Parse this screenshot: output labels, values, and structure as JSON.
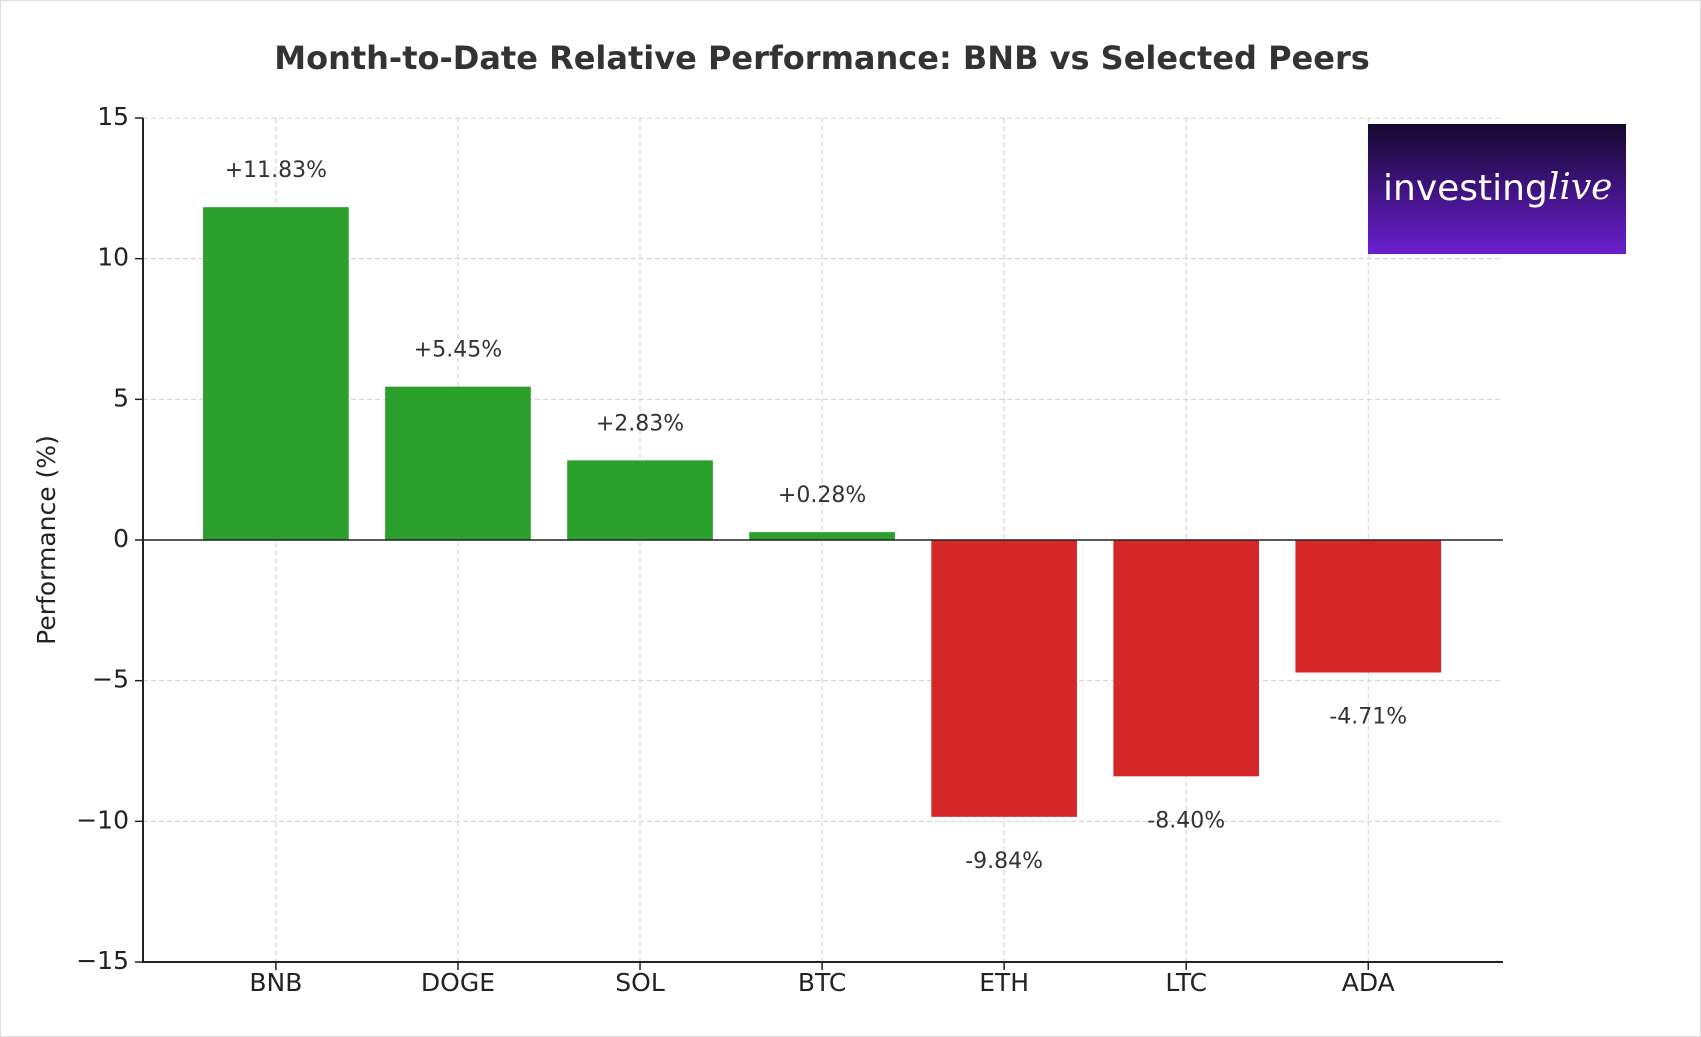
{
  "chart_data": {
    "type": "bar",
    "title": "Month-to-Date Relative Performance: BNB vs Selected Peers",
    "y_label": "Performance (%)",
    "categories": [
      "BNB",
      "DOGE",
      "SOL",
      "BTC",
      "ETH",
      "LTC",
      "ADA"
    ],
    "values": [
      11.83,
      5.45,
      2.83,
      0.28,
      -9.84,
      -8.4,
      -4.71
    ],
    "value_labels": [
      "+11.83%",
      "+5.45%",
      "+2.83%",
      "+0.28%",
      "-9.84%",
      "-8.40%",
      "-4.71%"
    ],
    "colors": [
      "#2ca02c",
      "#2ca02c",
      "#2ca02c",
      "#2ca02c",
      "#d62728",
      "#d62728",
      "#d62728"
    ],
    "ylim": [
      -15,
      15
    ],
    "yticks": [
      {
        "value": -15,
        "label": "−15"
      },
      {
        "value": -10,
        "label": "−10"
      },
      {
        "value": -5,
        "label": "−5"
      },
      0,
      5,
      10,
      15
    ],
    "grid": true,
    "logo": {
      "text": "investing",
      "accent": "live"
    }
  }
}
